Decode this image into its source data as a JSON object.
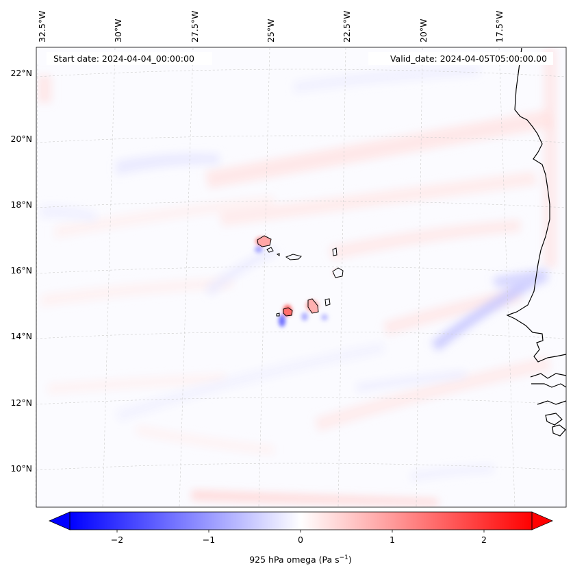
{
  "header": {
    "start_label": "Start date: 2024-04-04_00:00:00",
    "valid_label": "Valid_date: 2024-04-05T05:00:00.00"
  },
  "map": {
    "lon_labels": [
      "32.5°W",
      "30°W",
      "27.5°W",
      "25°W",
      "22.5°W",
      "20°W",
      "17.5°W"
    ],
    "lat_labels": [
      "22°N",
      "20°N",
      "18°N",
      "16°N",
      "14°N",
      "12°N",
      "10°N"
    ]
  },
  "colorbar": {
    "tick_labels": [
      "−2",
      "−1",
      "0",
      "1",
      "2"
    ],
    "label_main": "925 hPa omega (Pa s",
    "label_sup": "−1",
    "label_close": ")",
    "min_color": "#0000ff",
    "mid_color": "#ffffff",
    "max_color": "#ff0000"
  },
  "chart_data": {
    "type": "heatmap",
    "variable": "925 hPa omega",
    "units": "Pa s-1",
    "colormap": "bwr",
    "vmin": -2.5,
    "vmax": 2.5,
    "colorbar_ticks": [
      -2,
      -1,
      0,
      1,
      2
    ],
    "lon_range": [
      -33,
      -15
    ],
    "lat_range": [
      9,
      22.8
    ]
  }
}
